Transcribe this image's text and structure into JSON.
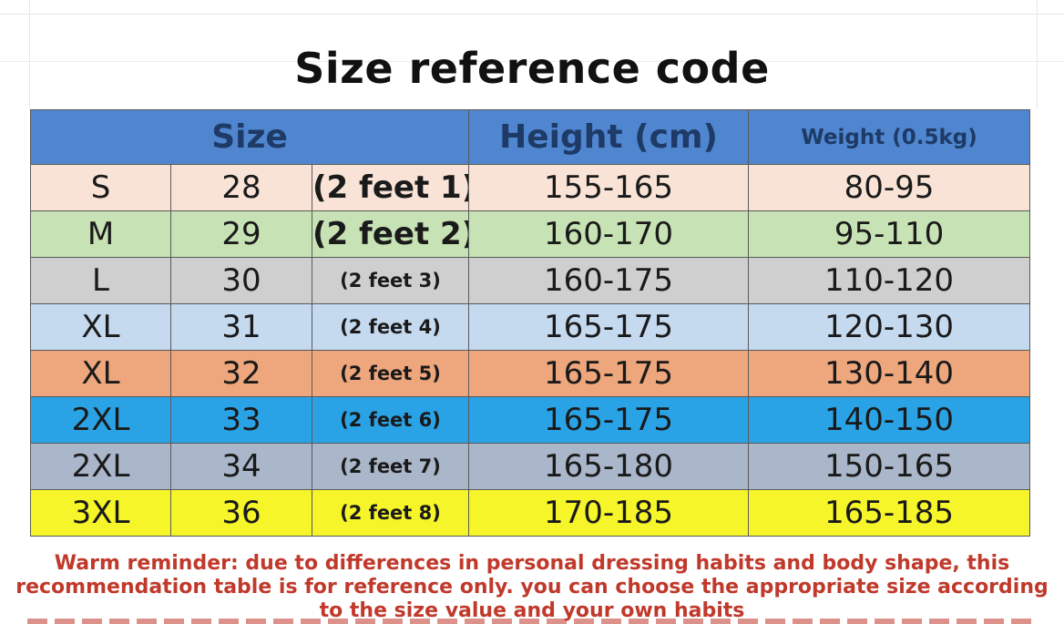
{
  "title": "Size reference code",
  "header": {
    "size": "Size",
    "height": "Height (cm)",
    "weight": "Weight (0.5kg)"
  },
  "rows": [
    {
      "size": "S",
      "waist": "28",
      "feet": "(2 feet 1)",
      "height": "155-165",
      "weight": "80-95",
      "color": "#f8e3d6"
    },
    {
      "size": "M",
      "waist": "29",
      "feet": "(2 feet 2)",
      "height": "160-170",
      "weight": "95-110",
      "color": "#c7e2b4"
    },
    {
      "size": "L",
      "waist": "30",
      "feet": "(2 feet 3)",
      "height": "160-175",
      "weight": "110-120",
      "color": "#cfcfcf"
    },
    {
      "size": "XL",
      "waist": "31",
      "feet": "(2 feet 4)",
      "height": "165-175",
      "weight": "120-130",
      "color": "#c5d9ef"
    },
    {
      "size": "XL",
      "waist": "32",
      "feet": "(2 feet 5)",
      "height": "165-175",
      "weight": "130-140",
      "color": "#eea67c"
    },
    {
      "size": "2XL",
      "waist": "33",
      "feet": "(2 feet 6)",
      "height": "165-175",
      "weight": "140-150",
      "color": "#2aa3e6"
    },
    {
      "size": "2XL",
      "waist": "34",
      "feet": "(2 feet 7)",
      "height": "165-180",
      "weight": "150-165",
      "color": "#aab6c9"
    },
    {
      "size": "3XL",
      "waist": "36",
      "feet": "(2 feet 8)",
      "height": "170-185",
      "weight": "165-185",
      "color": "#f5f52a"
    }
  ],
  "reminder": {
    "line1": "Warm reminder: due to differences in personal dressing habits and body shape, this",
    "line2": "recommendation table is for reference only. you can choose the appropriate size according",
    "line3": "to the size value and your own habits"
  }
}
